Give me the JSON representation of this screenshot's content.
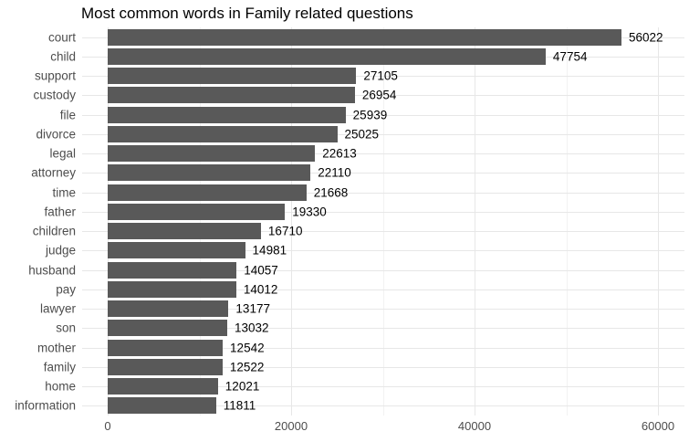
{
  "chart_data": {
    "type": "bar",
    "orientation": "horizontal",
    "title": "Most common words in Family related questions",
    "categories": [
      "court",
      "child",
      "support",
      "custody",
      "file",
      "divorce",
      "legal",
      "attorney",
      "time",
      "father",
      "children",
      "judge",
      "husband",
      "pay",
      "lawyer",
      "son",
      "mother",
      "family",
      "home",
      "information"
    ],
    "values": [
      56022,
      47754,
      27105,
      26954,
      25939,
      25025,
      22613,
      22110,
      21668,
      19330,
      16710,
      14981,
      14057,
      14012,
      13177,
      13032,
      12542,
      12522,
      12021,
      11811
    ],
    "xlabel": "",
    "ylabel": "",
    "x_ticks": [
      0,
      20000,
      40000,
      60000
    ],
    "x_tick_labels": [
      "0",
      "20000",
      "40000",
      "60000"
    ],
    "x_minor_ticks": [
      10000,
      30000,
      50000
    ],
    "xlim": [
      -2800,
      62900
    ],
    "grid": true,
    "legend": "none",
    "colors": {
      "bar": "#595959",
      "axis_text": "#4d4d4d",
      "value_text": "#000000",
      "grid_major": "#e7e7e7",
      "grid_minor": "#f2f2f2",
      "background": "#ffffff"
    }
  }
}
